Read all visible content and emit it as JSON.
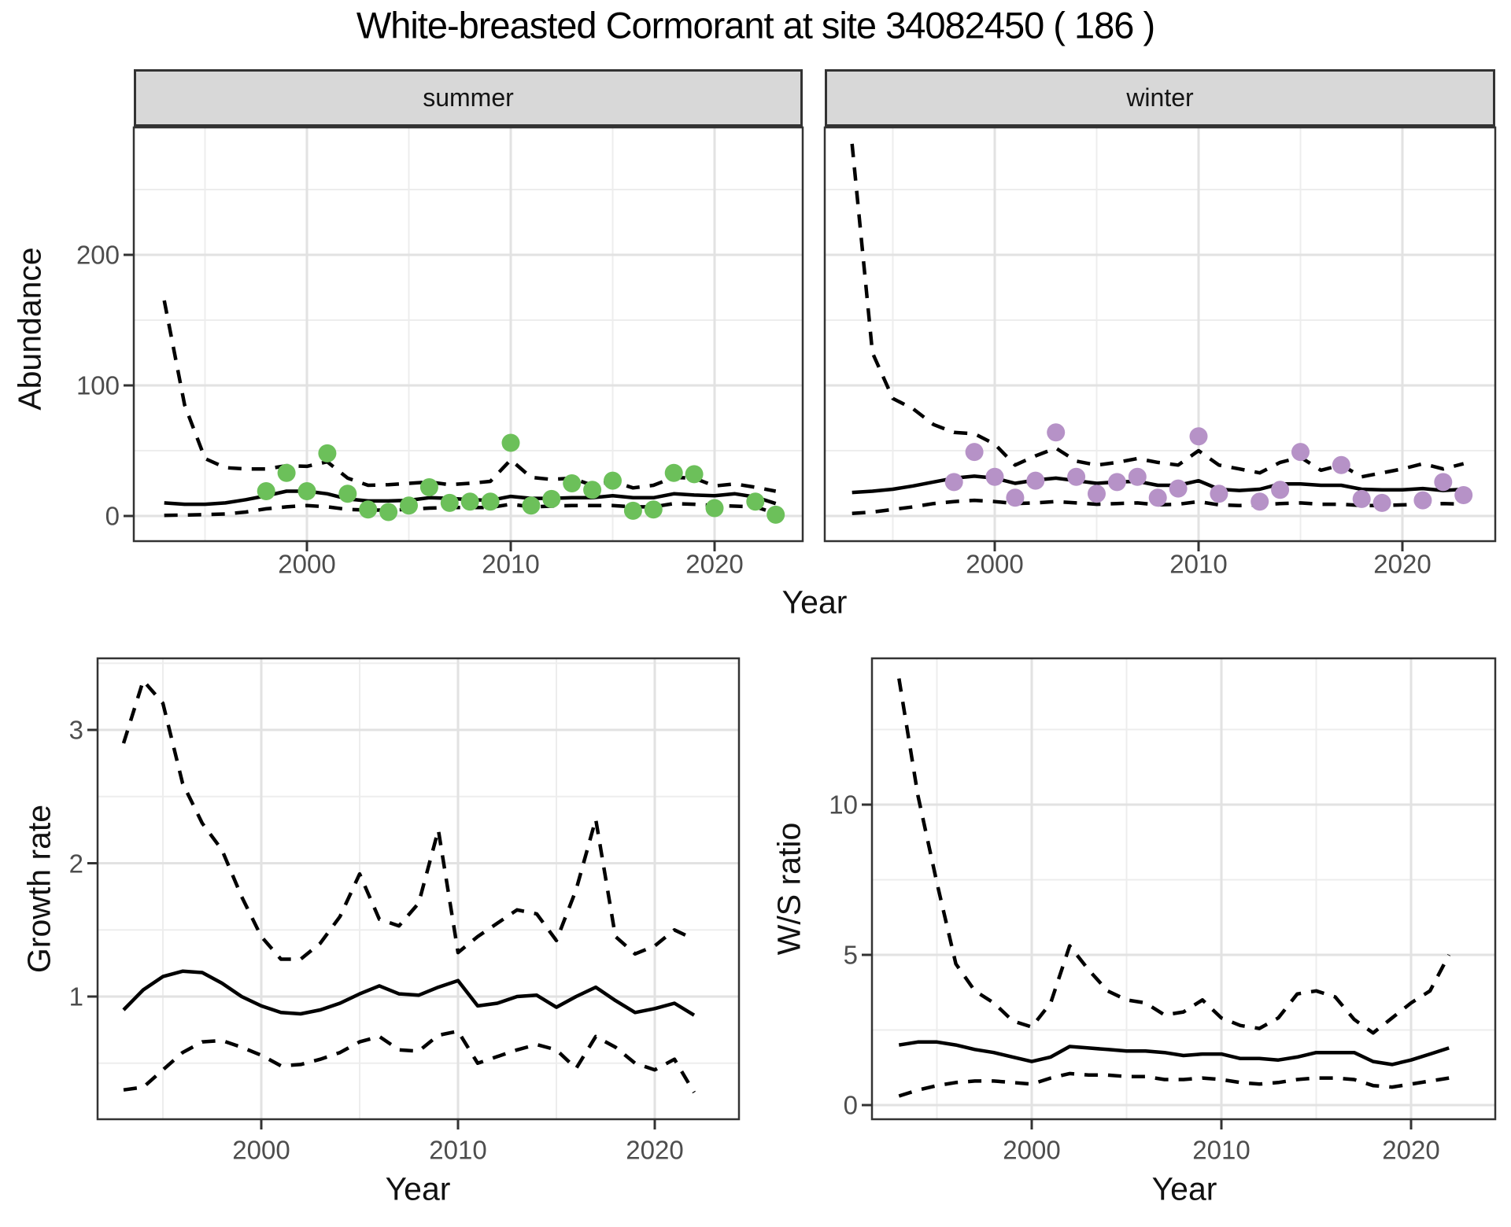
{
  "title": "White-breasted Cormorant at site 34082450 ( 186 )",
  "facets": {
    "summer": "summer",
    "winter": "winter"
  },
  "labels": {
    "abundance": "Abundance",
    "growth": "Growth rate",
    "ws": "W/S ratio",
    "year_top": "Year",
    "year_growth": "Year",
    "year_ws": "Year"
  },
  "colors": {
    "summer_point": "#6cc05a",
    "winter_point": "#b692c7",
    "line": "#000000",
    "strip_bg": "#d8d8d8",
    "panel_border": "#333333",
    "grid_major": "#e2e2e2",
    "grid_minor": "#ededed",
    "tick_text": "#4d4d4d"
  },
  "chart_data": [
    {
      "id": "abundance-summer",
      "type": "line",
      "facet_label": "summer",
      "xlabel": "Year",
      "ylabel": "Abundance",
      "x_ticks": [
        2000,
        2010,
        2020
      ],
      "x_minor": [
        1995,
        2005,
        2015
      ],
      "y_ticks": [
        0,
        100,
        200
      ],
      "y_minor": [
        50,
        150,
        250
      ],
      "xlim": [
        1991.5,
        2024.3
      ],
      "ylim": [
        -19,
        297
      ],
      "grid": true,
      "legend": "none",
      "series": [
        {
          "name": "median",
          "style": "solid",
          "year_start": 1993,
          "values": [
            10,
            9,
            9,
            10,
            12.5,
            15.5,
            19,
            19,
            17,
            13,
            11.5,
            11.5,
            12,
            14,
            13.5,
            12.5,
            12,
            15,
            13.5,
            13.5,
            14,
            14,
            15.5,
            14,
            14,
            17,
            16,
            15.5,
            17,
            14.5,
            9.5
          ]
        },
        {
          "name": "lower95",
          "style": "dashed",
          "year_start": 1993,
          "values": [
            0.5,
            0.7,
            1,
            1.5,
            3,
            5.5,
            7,
            8,
            7,
            5,
            4.5,
            4.5,
            5,
            6,
            6.5,
            6.5,
            6.5,
            9,
            7,
            7.5,
            8,
            8,
            8,
            7,
            7,
            9.5,
            9,
            8,
            7.5,
            7,
            2
          ]
        },
        {
          "name": "upper95",
          "style": "dashed",
          "year_start": 1993,
          "values": [
            165,
            85,
            44,
            37,
            36,
            36,
            38.5,
            38,
            41.5,
            29,
            23.5,
            24,
            25,
            26,
            24,
            25,
            26.5,
            43,
            29.5,
            28,
            29,
            23.5,
            26.5,
            21.5,
            23.5,
            29.5,
            29,
            23,
            24.5,
            22,
            19
          ]
        },
        {
          "name": "observed",
          "style": "points",
          "color": "#6cc05a",
          "years": [
            1998,
            1999,
            2000,
            2001,
            2002,
            2003,
            2004,
            2005,
            2006,
            2007,
            2008,
            2009,
            2010,
            2011,
            2012,
            2013,
            2014,
            2015,
            2016,
            2017,
            2018,
            2019,
            2020,
            2022,
            2023
          ],
          "values": [
            19,
            33,
            19,
            48,
            17,
            5,
            3,
            8,
            22,
            10,
            11,
            11,
            56,
            8,
            13,
            25,
            20,
            27,
            4,
            5,
            33,
            32,
            6,
            11,
            1
          ]
        }
      ]
    },
    {
      "id": "abundance-winter",
      "type": "line",
      "facet_label": "winter",
      "xlabel": "Year",
      "ylabel": "Abundance",
      "x_ticks": [
        2000,
        2010,
        2020
      ],
      "x_minor": [
        1995,
        2005,
        2015
      ],
      "y_ticks": [
        0,
        100,
        200
      ],
      "y_minor": [
        50,
        150,
        250
      ],
      "xlim": [
        1991.7,
        2024.6
      ],
      "ylim": [
        -19,
        297
      ],
      "grid": true,
      "legend": "none",
      "series": [
        {
          "name": "median",
          "style": "solid",
          "year_start": 1993,
          "values": [
            18,
            19,
            20.5,
            23,
            26,
            29,
            30.5,
            29,
            25,
            27.5,
            29,
            27,
            25,
            26,
            26.5,
            23.5,
            23.5,
            27,
            20.5,
            19.5,
            20.5,
            24.5,
            24.5,
            23.5,
            23.5,
            20.5,
            20,
            20,
            21,
            19.5,
            20.5
          ]
        },
        {
          "name": "lower95",
          "style": "dashed",
          "year_start": 1993,
          "values": [
            2,
            3,
            5,
            7,
            9.5,
            11,
            12,
            11,
            9.5,
            10,
            11,
            10,
            9,
            9.5,
            10,
            8.5,
            9,
            11,
            8.5,
            8,
            8.5,
            9.5,
            10,
            9,
            9,
            8,
            8,
            8.5,
            9,
            9.5,
            9
          ]
        },
        {
          "name": "upper95",
          "style": "dashed",
          "year_start": 1993,
          "values": [
            285,
            125,
            90,
            82,
            70,
            64,
            63,
            55,
            39,
            46,
            52,
            42,
            39,
            41,
            44,
            41,
            39,
            50,
            39,
            36,
            33,
            41,
            45,
            35,
            39,
            30,
            33,
            36,
            40,
            36,
            40
          ]
        },
        {
          "name": "observed",
          "style": "points",
          "color": "#b692c7",
          "years": [
            1998,
            1999,
            2000,
            2001,
            2002,
            2003,
            2004,
            2005,
            2006,
            2007,
            2008,
            2009,
            2010,
            2011,
            2013,
            2014,
            2015,
            2017,
            2018,
            2019,
            2021,
            2022,
            2023
          ],
          "values": [
            26,
            49,
            30,
            14,
            27,
            64,
            30,
            17,
            26,
            30,
            14,
            21,
            61,
            17,
            11,
            20,
            49,
            39,
            13,
            10,
            12,
            26,
            16
          ]
        }
      ]
    },
    {
      "id": "growth-rate",
      "type": "line",
      "facet_label": null,
      "xlabel": "Year",
      "ylabel": "Growth rate",
      "x_ticks": [
        2000,
        2010,
        2020
      ],
      "x_minor": [
        1995,
        2005,
        2015
      ],
      "y_ticks": [
        1,
        2,
        3
      ],
      "y_minor": [
        0.5,
        1.5,
        2.5,
        3.5
      ],
      "xlim": [
        1991.7,
        2024.3
      ],
      "ylim": [
        0.08,
        3.54
      ],
      "grid": true,
      "legend": "none",
      "series": [
        {
          "name": "median",
          "style": "solid",
          "year_start": 1993,
          "values": [
            0.9,
            1.05,
            1.15,
            1.19,
            1.18,
            1.1,
            1.0,
            0.93,
            0.88,
            0.87,
            0.9,
            0.95,
            1.02,
            1.08,
            1.02,
            1.01,
            1.07,
            1.12,
            0.93,
            0.95,
            1.0,
            1.01,
            0.92,
            1.0,
            1.07,
            0.97,
            0.88,
            0.91,
            0.95,
            0.86
          ]
        },
        {
          "name": "lower95",
          "style": "dashed",
          "year_start": 1993,
          "values": [
            0.3,
            0.32,
            0.45,
            0.58,
            0.66,
            0.67,
            0.62,
            0.56,
            0.48,
            0.49,
            0.53,
            0.58,
            0.66,
            0.7,
            0.6,
            0.59,
            0.71,
            0.74,
            0.5,
            0.55,
            0.6,
            0.64,
            0.6,
            0.46,
            0.7,
            0.62,
            0.5,
            0.45,
            0.53,
            0.28
          ]
        },
        {
          "name": "upper95",
          "style": "dashed",
          "year_start": 1993,
          "values": [
            2.9,
            3.37,
            3.2,
            2.6,
            2.3,
            2.1,
            1.75,
            1.45,
            1.28,
            1.28,
            1.4,
            1.6,
            1.92,
            1.58,
            1.53,
            1.7,
            2.25,
            1.33,
            1.45,
            1.55,
            1.65,
            1.62,
            1.42,
            1.8,
            2.33,
            1.45,
            1.32,
            1.38,
            1.5,
            1.43
          ]
        }
      ]
    },
    {
      "id": "ws-ratio",
      "type": "line",
      "facet_label": null,
      "xlabel": "Year",
      "ylabel": "W/S ratio",
      "x_ticks": [
        2000,
        2010,
        2020
      ],
      "x_minor": [
        1995,
        2005,
        2015
      ],
      "y_ticks": [
        0,
        5,
        10
      ],
      "y_minor": [
        2.5,
        7.5,
        12.5
      ],
      "xlim": [
        1991.6,
        2024.4
      ],
      "ylim": [
        -0.5,
        14.9
      ],
      "grid": true,
      "legend": "none",
      "series": [
        {
          "name": "median",
          "style": "solid",
          "year_start": 1993,
          "values": [
            2.0,
            2.1,
            2.1,
            2.0,
            1.85,
            1.75,
            1.6,
            1.45,
            1.6,
            1.95,
            1.9,
            1.85,
            1.8,
            1.8,
            1.75,
            1.65,
            1.7,
            1.7,
            1.55,
            1.55,
            1.5,
            1.6,
            1.75,
            1.75,
            1.75,
            1.45,
            1.35,
            1.5,
            1.7,
            1.9
          ]
        },
        {
          "name": "lower95",
          "style": "dashed",
          "year_start": 1993,
          "values": [
            0.3,
            0.5,
            0.65,
            0.75,
            0.8,
            0.8,
            0.75,
            0.7,
            0.9,
            1.05,
            1.0,
            1.0,
            0.95,
            0.95,
            0.85,
            0.85,
            0.9,
            0.85,
            0.75,
            0.7,
            0.75,
            0.85,
            0.9,
            0.9,
            0.85,
            0.65,
            0.6,
            0.7,
            0.8,
            0.9
          ]
        },
        {
          "name": "upper95",
          "style": "dashed",
          "year_start": 1993,
          "values": [
            14.2,
            10.3,
            7.4,
            4.7,
            3.8,
            3.4,
            2.8,
            2.6,
            3.4,
            5.3,
            4.5,
            3.8,
            3.5,
            3.4,
            3.0,
            3.1,
            3.5,
            2.9,
            2.65,
            2.55,
            2.9,
            3.7,
            3.8,
            3.6,
            2.85,
            2.4,
            2.9,
            3.4,
            3.8,
            5.0
          ]
        }
      ]
    }
  ]
}
